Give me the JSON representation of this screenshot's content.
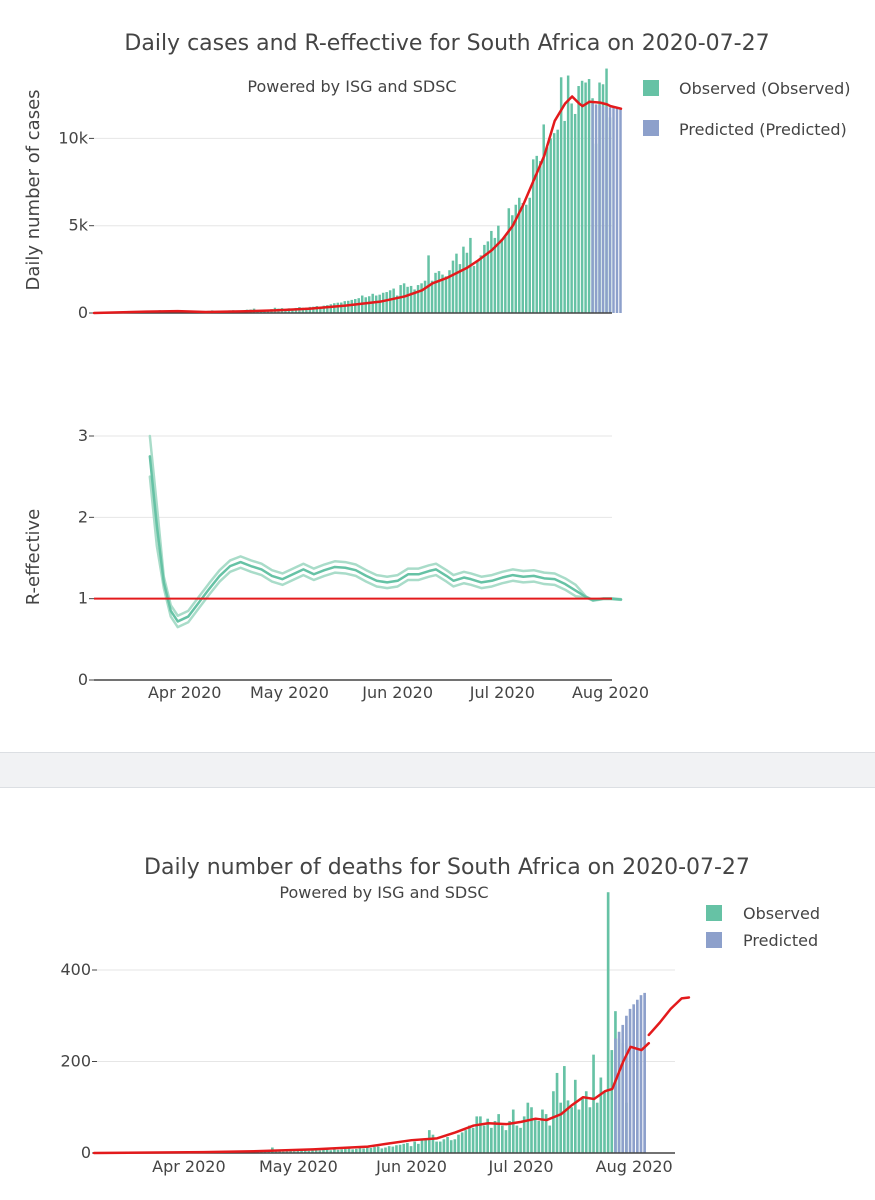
{
  "chart_data": [
    {
      "type": "bar",
      "title": "Daily cases and R-effective for South Africa on 2020-07-27",
      "subtitle": "Powered by ISG and SDSC",
      "ylabel": "Daily number of cases",
      "ylim": [
        0,
        14000
      ],
      "yticks": [
        0,
        5000,
        10000
      ],
      "ytick_labels": [
        "0",
        "5k",
        "10k"
      ],
      "x_start": "2020-03-06",
      "series": [
        {
          "name": "Observed (Observed)",
          "color": "#66c2a5",
          "values": [
            1,
            0,
            1,
            3,
            4,
            3,
            8,
            7,
            10,
            13,
            10,
            19,
            20,
            30,
            52,
            50,
            95,
            120,
            143,
            160,
            80,
            91,
            110,
            120,
            90,
            50,
            120,
            105,
            90,
            80,
            110,
            70,
            95,
            120,
            150,
            70,
            110,
            90,
            110,
            150,
            160,
            80,
            140,
            120,
            190,
            200,
            250,
            150,
            170,
            160,
            190,
            220,
            300,
            250,
            280,
            200,
            270,
            250,
            290,
            340,
            300,
            310,
            350,
            360,
            400,
            350,
            420,
            450,
            500,
            560,
            590,
            600,
            680,
            700,
            750,
            800,
            850,
            1000,
            900,
            960,
            1100,
            1000,
            1050,
            1160,
            1200,
            1300,
            1400,
            1000,
            1600,
            1700,
            1500,
            1550,
            1350,
            1600,
            1700,
            1850,
            3300,
            1850,
            2300,
            2400,
            2200,
            2100,
            2450,
            3000,
            3400,
            2800,
            3800,
            3450,
            4300,
            2700,
            3000,
            3300,
            3900,
            4100,
            4700,
            4300,
            5000,
            4250,
            4400,
            6000,
            5600,
            6200,
            6600,
            6300,
            6200,
            6600,
            8800,
            9000,
            8700,
            10800,
            9500,
            10000,
            10300,
            10500,
            13500,
            11000,
            13600,
            12000,
            11400,
            13000,
            13300,
            13200,
            13400,
            12300,
            9700,
            13200,
            13100,
            14000,
            11200
          ],
          "end": "2020-07-26"
        },
        {
          "name": "Predicted (Predicted)",
          "color": "#8da0cb",
          "values": [
            12000,
            11950,
            11900,
            11850,
            11800,
            11780,
            11760,
            11720,
            11700
          ],
          "start": "2020-07-27"
        }
      ],
      "smoothed_line": {
        "color": "#e31a1c",
        "points": [
          [
            "2020-03-06",
            0
          ],
          [
            "2020-03-21",
            80
          ],
          [
            "2020-03-30",
            110
          ],
          [
            "2020-04-07",
            60
          ],
          [
            "2020-04-17",
            90
          ],
          [
            "2020-04-27",
            150
          ],
          [
            "2020-05-07",
            250
          ],
          [
            "2020-05-17",
            420
          ],
          [
            "2020-05-27",
            650
          ],
          [
            "2020-06-03",
            950
          ],
          [
            "2020-06-08",
            1300
          ],
          [
            "2020-06-11",
            1700
          ],
          [
            "2020-06-15",
            2000
          ],
          [
            "2020-06-18",
            2300
          ],
          [
            "2020-06-21",
            2600
          ],
          [
            "2020-06-24",
            3000
          ],
          [
            "2020-06-28",
            3600
          ],
          [
            "2020-07-01",
            4200
          ],
          [
            "2020-07-04",
            5000
          ],
          [
            "2020-07-07",
            6200
          ],
          [
            "2020-07-10",
            7600
          ],
          [
            "2020-07-13",
            9000
          ],
          [
            "2020-07-16",
            11000
          ],
          [
            "2020-07-19",
            12000
          ],
          [
            "2020-07-21",
            12400
          ],
          [
            "2020-07-23",
            12000
          ],
          [
            "2020-07-24",
            11850
          ],
          [
            "2020-07-26",
            12100
          ],
          [
            "2020-07-29",
            12050
          ],
          [
            "2020-07-31",
            11950
          ],
          [
            "2020-08-01",
            11850
          ],
          [
            "2020-08-04",
            11700
          ]
        ]
      }
    },
    {
      "type": "line",
      "ylabel": "R-effective",
      "ylim": [
        0,
        3.2
      ],
      "yticks": [
        0,
        1,
        2,
        3
      ],
      "ytick_labels": [
        "0",
        "1",
        "2",
        "3"
      ],
      "xtick_labels": [
        "Apr 2020",
        "May 2020",
        "Jun 2020",
        "Jul 2020",
        "Aug 2020"
      ],
      "xtick_dates": [
        "2020-04-01",
        "2020-05-01",
        "2020-06-01",
        "2020-07-01",
        "2020-08-01"
      ],
      "reference_line": {
        "y": 1,
        "color": "#e31a1c"
      },
      "series": [
        {
          "name": "R-effective",
          "color": "#66c2a5",
          "points": [
            [
              "2020-03-22",
              2.75
            ],
            [
              "2020-03-24",
              1.9
            ],
            [
              "2020-03-26",
              1.2
            ],
            [
              "2020-03-28",
              0.85
            ],
            [
              "2020-03-30",
              0.72
            ],
            [
              "2020-04-02",
              0.78
            ],
            [
              "2020-04-05",
              0.95
            ],
            [
              "2020-04-08",
              1.12
            ],
            [
              "2020-04-11",
              1.28
            ],
            [
              "2020-04-14",
              1.4
            ],
            [
              "2020-04-17",
              1.45
            ],
            [
              "2020-04-20",
              1.4
            ],
            [
              "2020-04-23",
              1.36
            ],
            [
              "2020-04-26",
              1.28
            ],
            [
              "2020-04-29",
              1.24
            ],
            [
              "2020-05-02",
              1.3
            ],
            [
              "2020-05-05",
              1.36
            ],
            [
              "2020-05-08",
              1.3
            ],
            [
              "2020-05-11",
              1.35
            ],
            [
              "2020-05-14",
              1.39
            ],
            [
              "2020-05-17",
              1.38
            ],
            [
              "2020-05-20",
              1.35
            ],
            [
              "2020-05-23",
              1.28
            ],
            [
              "2020-05-26",
              1.22
            ],
            [
              "2020-05-29",
              1.2
            ],
            [
              "2020-06-01",
              1.22
            ],
            [
              "2020-06-04",
              1.3
            ],
            [
              "2020-06-07",
              1.3
            ],
            [
              "2020-06-10",
              1.34
            ],
            [
              "2020-06-12",
              1.36
            ],
            [
              "2020-06-15",
              1.28
            ],
            [
              "2020-06-17",
              1.22
            ],
            [
              "2020-06-20",
              1.26
            ],
            [
              "2020-06-22",
              1.24
            ],
            [
              "2020-06-25",
              1.2
            ],
            [
              "2020-06-28",
              1.22
            ],
            [
              "2020-07-01",
              1.26
            ],
            [
              "2020-07-04",
              1.29
            ],
            [
              "2020-07-07",
              1.27
            ],
            [
              "2020-07-10",
              1.28
            ],
            [
              "2020-07-13",
              1.25
            ],
            [
              "2020-07-16",
              1.24
            ],
            [
              "2020-07-19",
              1.18
            ],
            [
              "2020-07-22",
              1.1
            ],
            [
              "2020-07-25",
              1.02
            ],
            [
              "2020-07-27",
              0.98
            ],
            [
              "2020-07-30",
              1.0
            ],
            [
              "2020-08-01",
              1.0
            ],
            [
              "2020-08-04",
              0.99
            ]
          ]
        }
      ]
    },
    {
      "type": "bar",
      "title": "Daily number of deaths for South Africa on 2020-07-27",
      "subtitle": "Powered by ISG and SDSC",
      "ylim": [
        0,
        600
      ],
      "yticks": [
        0,
        200,
        400
      ],
      "ytick_labels": [
        "0",
        "200",
        "400"
      ],
      "xtick_labels": [
        "Apr 2020",
        "May 2020",
        "Jun 2020",
        "Jul 2020",
        "Aug 2020"
      ],
      "xtick_dates": [
        "2020-04-01",
        "2020-05-01",
        "2020-06-01",
        "2020-07-01",
        "2020-08-01"
      ],
      "x_start": "2020-03-06",
      "series": [
        {
          "name": "Observed",
          "color": "#66c2a5",
          "values": [
            0,
            0,
            0,
            0,
            0,
            0,
            0,
            0,
            0,
            0,
            0,
            0,
            0,
            0,
            0,
            0,
            0,
            0,
            0,
            0,
            0,
            1,
            0,
            1,
            1,
            0,
            1,
            1,
            1,
            1,
            2,
            1,
            2,
            2,
            2,
            1,
            2,
            2,
            3,
            2,
            1,
            3,
            2,
            2,
            3,
            4,
            5,
            3,
            4,
            12,
            5,
            4,
            3,
            4,
            5,
            4,
            5,
            6,
            6,
            5,
            6,
            7,
            6,
            7,
            10,
            6,
            8,
            7,
            8,
            9,
            10,
            8,
            9,
            11,
            10,
            12,
            11,
            13,
            14,
            10,
            12,
            15,
            14,
            17,
            18,
            20,
            22,
            15,
            25,
            20,
            28,
            30,
            50,
            40,
            25,
            25,
            30,
            35,
            28,
            30,
            40,
            45,
            50,
            60,
            55,
            80,
            80,
            60,
            75,
            55,
            70,
            85,
            60,
            50,
            70,
            95,
            60,
            55,
            80,
            110,
            100,
            75,
            70,
            95,
            85,
            60,
            135,
            175,
            110,
            190,
            115,
            100,
            160,
            95,
            120,
            135,
            100,
            215,
            110,
            165,
            135,
            570,
            225,
            310,
            250,
            240,
            110
          ],
          "end": "2020-07-26"
        },
        {
          "name": "Predicted",
          "color": "#8da0cb",
          "values": [
            250,
            265,
            280,
            300,
            315,
            325,
            335,
            345,
            350
          ],
          "start": "2020-07-27"
        }
      ],
      "smoothed_line": {
        "color": "#e31a1c",
        "points": [
          [
            "2020-03-06",
            0
          ],
          [
            "2020-04-05",
            2
          ],
          [
            "2020-04-20",
            4
          ],
          [
            "2020-05-05",
            8
          ],
          [
            "2020-05-20",
            14
          ],
          [
            "2020-05-25",
            20
          ],
          [
            "2020-06-01",
            28
          ],
          [
            "2020-06-08",
            32
          ],
          [
            "2020-06-13",
            45
          ],
          [
            "2020-06-18",
            60
          ],
          [
            "2020-06-22",
            65
          ],
          [
            "2020-06-27",
            63
          ],
          [
            "2020-07-01",
            68
          ],
          [
            "2020-07-05",
            75
          ],
          [
            "2020-07-08",
            72
          ],
          [
            "2020-07-12",
            85
          ],
          [
            "2020-07-15",
            105
          ],
          [
            "2020-07-18",
            122
          ],
          [
            "2020-07-21",
            118
          ],
          [
            "2020-07-24",
            135
          ],
          [
            "2020-07-26",
            140
          ],
          [
            "2020-07-29",
            200
          ],
          [
            "2020-07-31",
            232
          ],
          [
            "2020-08-03",
            225
          ],
          [
            "2020-08-05",
            240
          ]
        ],
        "pred_points": [
          [
            "2020-08-05",
            258
          ],
          [
            "2020-08-08",
            285
          ],
          [
            "2020-08-11",
            315
          ],
          [
            "2020-08-14",
            338
          ],
          [
            "2020-08-16",
            340
          ]
        ]
      }
    }
  ]
}
